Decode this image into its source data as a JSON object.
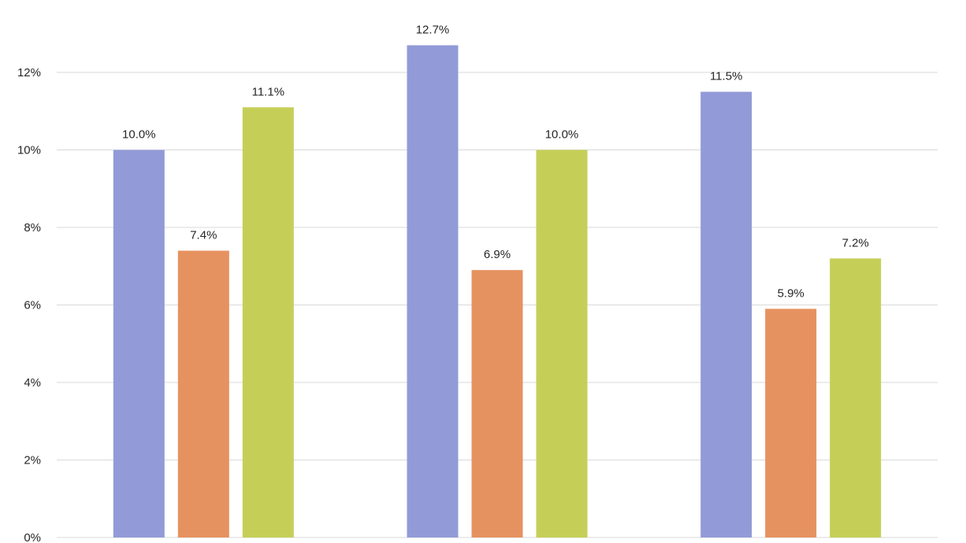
{
  "chart_data": {
    "type": "bar",
    "title": "",
    "xlabel": "",
    "ylabel": "",
    "categories": [
      "",
      "",
      ""
    ],
    "ylim": [
      0,
      12
    ],
    "yticks": [
      0,
      2,
      4,
      6,
      8,
      10,
      12
    ],
    "ytick_labels": [
      "0%",
      "2%",
      "4%",
      "6%",
      "8%",
      "10%",
      "12%"
    ],
    "grid": true,
    "legend": "none",
    "series": [
      {
        "color": "#929bd7",
        "values": [
          10.0,
          12.7,
          11.5
        ],
        "labels": [
          "10.0%",
          "12.7%",
          "11.5%"
        ]
      },
      {
        "color": "#e69260",
        "values": [
          7.4,
          6.9,
          5.9
        ],
        "labels": [
          "7.4%",
          "6.9%",
          "5.9%"
        ]
      },
      {
        "color": "#c5cf58",
        "values": [
          11.1,
          10.0,
          7.2
        ],
        "labels": [
          "11.1%",
          "10.0%",
          "7.2%"
        ]
      }
    ]
  }
}
